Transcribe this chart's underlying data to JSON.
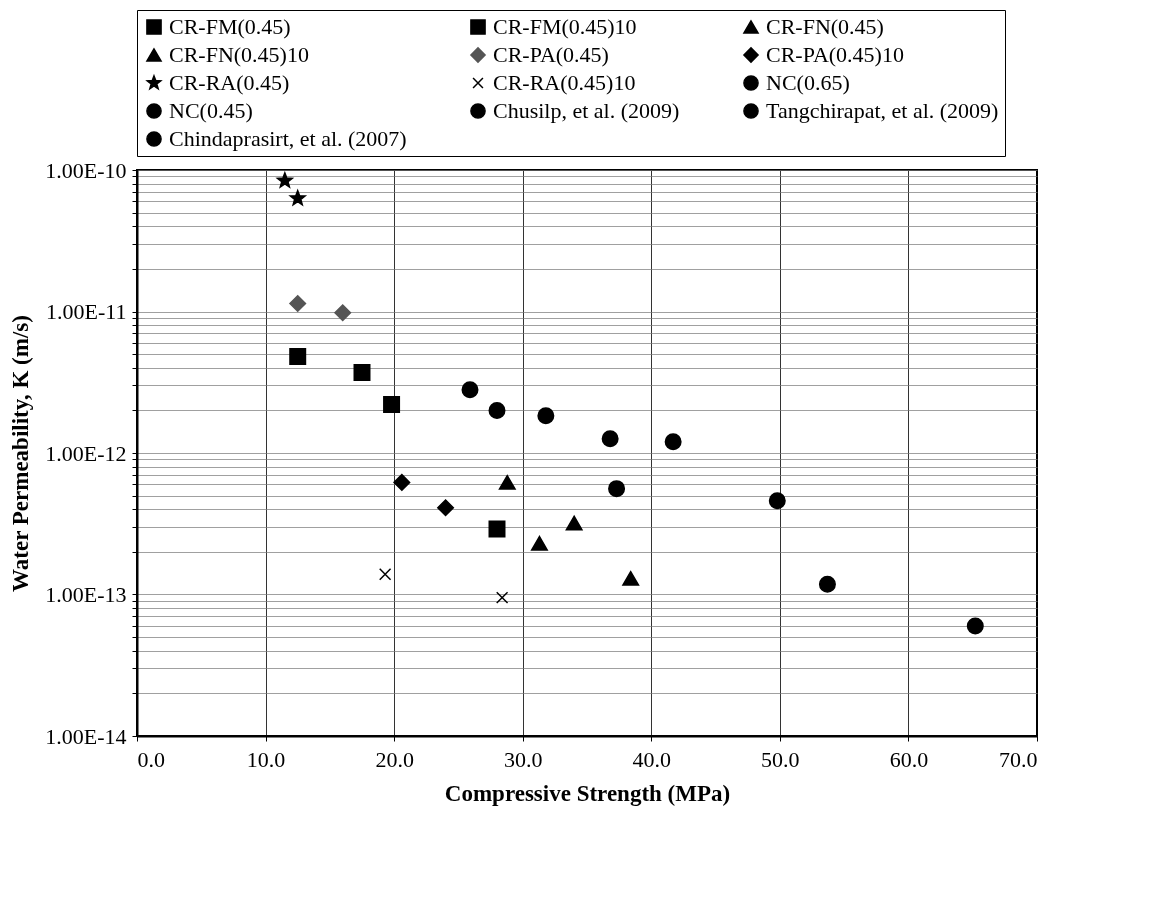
{
  "chart_data": {
    "type": "scatter",
    "xlabel": "Compressive Strength (MPa)",
    "ylabel": "Water Permeability, K (m/s)",
    "log": "y",
    "grid": true,
    "legend": "top",
    "xlim": [
      0,
      70
    ],
    "xticks": [
      {
        "value": 0,
        "label": "0.0"
      },
      {
        "value": 10,
        "label": "10.0"
      },
      {
        "value": 20,
        "label": "20.0"
      },
      {
        "value": 30,
        "label": "30.0"
      },
      {
        "value": 40,
        "label": "40.0"
      },
      {
        "value": 50,
        "label": "50.0"
      },
      {
        "value": 60,
        "label": "60.0"
      },
      {
        "value": 70,
        "label": "70.0"
      }
    ],
    "ylim": [
      1e-14,
      1e-10
    ],
    "yticks": [
      {
        "value": 1e-14,
        "label": "1.00E-14"
      },
      {
        "value": 2e-14,
        "label": null
      },
      {
        "value": 3e-14,
        "label": null
      },
      {
        "value": 4e-14,
        "label": null
      },
      {
        "value": 5e-14,
        "label": null
      },
      {
        "value": 6e-14,
        "label": null
      },
      {
        "value": 7e-14,
        "label": null
      },
      {
        "value": 8e-14,
        "label": null
      },
      {
        "value": 9e-14,
        "label": null
      },
      {
        "value": 1e-13,
        "label": "1.00E-13"
      },
      {
        "value": 2e-13,
        "label": null
      },
      {
        "value": 3e-13,
        "label": null
      },
      {
        "value": 4e-13,
        "label": null
      },
      {
        "value": 5e-13,
        "label": null
      },
      {
        "value": 6e-13,
        "label": null
      },
      {
        "value": 7e-13,
        "label": null
      },
      {
        "value": 8e-13,
        "label": null
      },
      {
        "value": 9e-13,
        "label": null
      },
      {
        "value": 1e-12,
        "label": "1.00E-12"
      },
      {
        "value": 2e-12,
        "label": null
      },
      {
        "value": 3e-12,
        "label": null
      },
      {
        "value": 4e-12,
        "label": null
      },
      {
        "value": 5e-12,
        "label": null
      },
      {
        "value": 6e-12,
        "label": null
      },
      {
        "value": 7e-12,
        "label": null
      },
      {
        "value": 8e-12,
        "label": null
      },
      {
        "value": 9e-12,
        "label": null
      },
      {
        "value": 1e-11,
        "label": "1.00E-11"
      },
      {
        "value": 2e-11,
        "label": null
      },
      {
        "value": 3e-11,
        "label": null
      },
      {
        "value": 4e-11,
        "label": null
      },
      {
        "value": 5e-11,
        "label": null
      },
      {
        "value": 6e-11,
        "label": null
      },
      {
        "value": 7e-11,
        "label": null
      },
      {
        "value": 8e-11,
        "label": null
      },
      {
        "value": 9e-11,
        "label": null
      },
      {
        "value": 1e-10,
        "label": "1.00E-10"
      }
    ],
    "series": [
      {
        "name": "CR-FM(0.45)",
        "color": "#000000",
        "marker": "square",
        "x": [
          12.5,
          19.8
        ],
        "values": [
          4.8e-12,
          2.2e-12
        ]
      },
      {
        "name": "CR-FM(0.45)10",
        "color": "#000000",
        "marker": "square",
        "x": [
          17.5,
          28.0
        ],
        "values": [
          3.7e-12,
          2.9e-13
        ]
      },
      {
        "name": "CR-FN(0.45)",
        "color": "#000000",
        "marker": "triangle",
        "x": [
          28.8,
          34.0
        ],
        "values": [
          6.2e-13,
          3.2e-13
        ]
      },
      {
        "name": "CR-FN(0.45)10",
        "color": "#000000",
        "marker": "triangle",
        "x": [
          31.3,
          38.4
        ],
        "values": [
          2.3e-13,
          1.3e-13
        ]
      },
      {
        "name": "CR-PA(0.45)",
        "color": "#555555",
        "marker": "diamond",
        "x": [
          12.5,
          16.0
        ],
        "values": [
          1.14e-11,
          9.8e-12
        ]
      },
      {
        "name": "CR-PA(0.45)10",
        "color": "#000000",
        "marker": "diamond",
        "x": [
          20.6,
          24.0
        ],
        "values": [
          6.2e-13,
          4.1e-13
        ]
      },
      {
        "name": "CR-RA(0.45)",
        "color": "#000000",
        "marker": "star",
        "x": [
          11.5,
          12.5
        ],
        "values": [
          8.4e-11,
          6.3e-11
        ]
      },
      {
        "name": "CR-RA(0.45)10",
        "color": "#000000",
        "marker": "cross",
        "x": [
          19.3,
          28.4
        ],
        "values": [
          1.39e-13,
          9.5e-14
        ]
      },
      {
        "name": "NC(0.65)",
        "color": "#000000",
        "marker": "circle",
        "x": [
          31.8,
          37.3
        ],
        "values": [
          1.83e-12,
          5.6e-13
        ]
      },
      {
        "name": "NC(0.45)",
        "color": "#000000",
        "marker": "circle",
        "x": [
          49.8,
          53.7
        ],
        "values": [
          4.6e-13,
          1.18e-13
        ]
      },
      {
        "name": "Chusilp, et al. (2009)",
        "color": "#000000",
        "marker": "circle",
        "x": [
          25.9,
          28.0
        ],
        "values": [
          2.8e-12,
          2e-12
        ]
      },
      {
        "name": "Tangchirapat, et al. (2009)",
        "color": "#000000",
        "marker": "circle",
        "x": [
          36.8,
          41.7
        ],
        "values": [
          1.26e-12,
          1.2e-12
        ]
      },
      {
        "name": "Chindaprasirt, et al. (2007)",
        "color": "#000000",
        "marker": "circle",
        "x": [
          65.2
        ],
        "values": [
          6e-14
        ]
      }
    ]
  }
}
